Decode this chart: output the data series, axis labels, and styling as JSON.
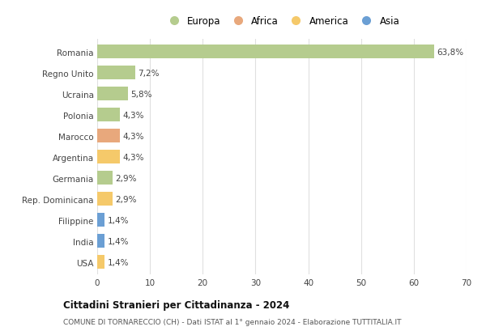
{
  "categories": [
    "Romania",
    "Regno Unito",
    "Ucraina",
    "Polonia",
    "Marocco",
    "Argentina",
    "Germania",
    "Rep. Dominicana",
    "Filippine",
    "India",
    "USA"
  ],
  "values": [
    63.8,
    7.2,
    5.8,
    4.3,
    4.3,
    4.3,
    2.9,
    2.9,
    1.4,
    1.4,
    1.4
  ],
  "labels": [
    "63,8%",
    "7,2%",
    "5,8%",
    "4,3%",
    "4,3%",
    "4,3%",
    "2,9%",
    "2,9%",
    "1,4%",
    "1,4%",
    "1,4%"
  ],
  "continents": [
    "Europa",
    "Europa",
    "Europa",
    "Europa",
    "Africa",
    "America",
    "Europa",
    "America",
    "Asia",
    "Asia",
    "America"
  ],
  "colors": {
    "Europa": "#b5cc8e",
    "Africa": "#e8a87c",
    "America": "#f5c96a",
    "Asia": "#6b9fd4"
  },
  "legend_labels": [
    "Europa",
    "Africa",
    "America",
    "Asia"
  ],
  "legend_colors": [
    "#b5cc8e",
    "#e8a87c",
    "#f5c96a",
    "#6b9fd4"
  ],
  "title": "Cittadini Stranieri per Cittadinanza - 2024",
  "subtitle": "COMUNE DI TORNARECCIO (CH) - Dati ISTAT al 1° gennaio 2024 - Elaborazione TUTTITALIA.IT",
  "xlim": [
    0,
    70
  ],
  "xticks": [
    0,
    10,
    20,
    30,
    40,
    50,
    60,
    70
  ],
  "background_color": "#ffffff",
  "grid_color": "#e0e0e0",
  "bar_height": 0.65
}
